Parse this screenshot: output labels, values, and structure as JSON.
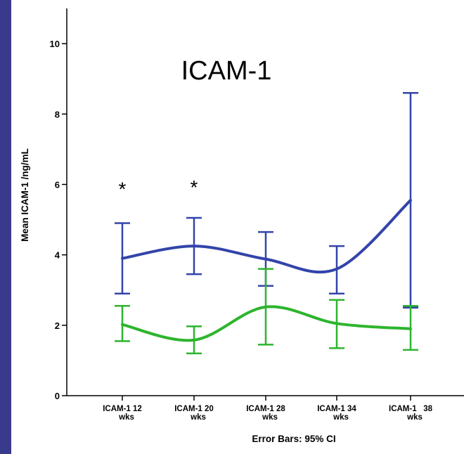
{
  "chart_data": {
    "type": "line",
    "title": "ICAM-1",
    "ylabel": "Mean ICAM-1 /ng/mL",
    "footer": "Error Bars: 95% CI",
    "ylim": [
      0,
      11
    ],
    "yticks": [
      "0",
      "2",
      "4",
      "6",
      "8",
      "10"
    ],
    "categories": [
      [
        "ICAM-1 12",
        "wks"
      ],
      [
        "ICAM-1 20",
        "wks"
      ],
      [
        "ICAM-1 28",
        "wks"
      ],
      [
        "ICAM-1 34",
        "wks"
      ],
      [
        "ICAM-1   38",
        "wks"
      ]
    ],
    "series": [
      {
        "color": "#3344aa",
        "values": [
          3.9,
          4.25,
          3.88,
          3.6,
          5.55
        ],
        "ci_low": [
          2.9,
          3.45,
          3.12,
          2.9,
          2.5
        ],
        "ci_high": [
          4.9,
          5.05,
          4.65,
          4.25,
          8.6
        ]
      },
      {
        "color": "#2db52d",
        "values": [
          2.02,
          1.58,
          2.52,
          2.05,
          1.9
        ],
        "ci_low": [
          1.55,
          1.2,
          1.45,
          1.35,
          1.3
        ],
        "ci_high": [
          2.55,
          1.97,
          3.6,
          2.72,
          2.55
        ]
      }
    ],
    "annotations": [
      {
        "text": "*",
        "category_index": 0,
        "y": 6.0
      },
      {
        "text": "*",
        "category_index": 1,
        "y": 6.05
      }
    ],
    "grid": false,
    "legend": "none"
  }
}
